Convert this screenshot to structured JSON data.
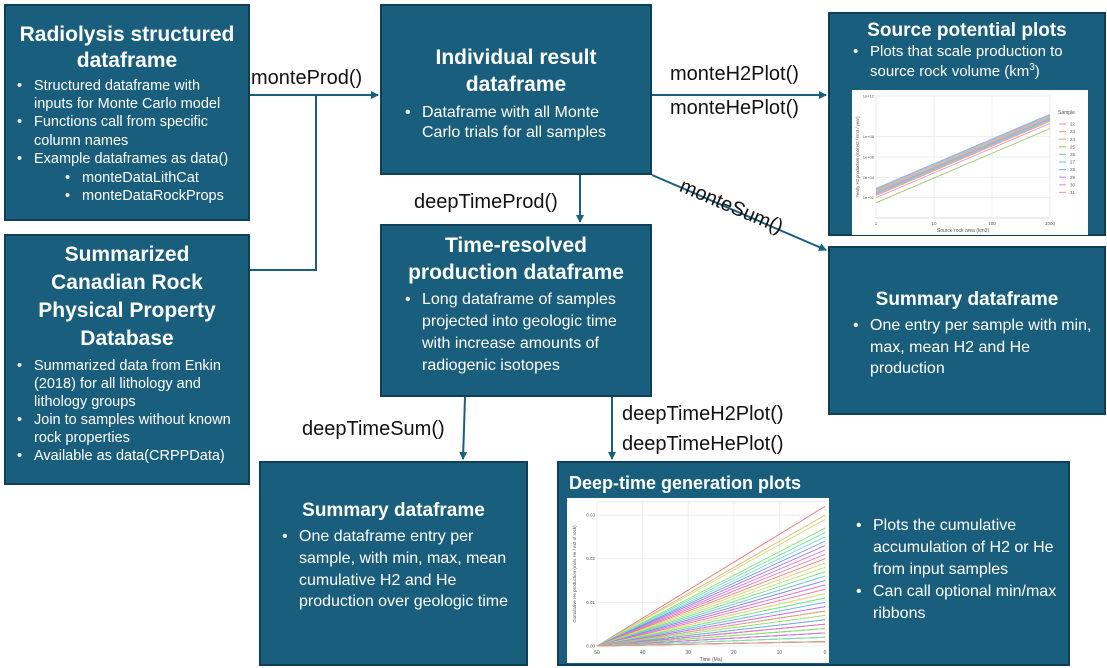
{
  "boxes": {
    "radiolysis": {
      "title": "Radiolysis structured dataframe",
      "bullets": [
        "Structured dataframe with inputs for Monte Carlo model",
        "Functions call from specific column names",
        "Example dataframes as data()"
      ],
      "sub_bullets": [
        "monteDataLithCat",
        "monteDataRockProps"
      ]
    },
    "crpp": {
      "title": "Summarized Canadian Rock Physical Property Database",
      "bullets": [
        "Summarized data from Enkin (2018) for all lithology and lithology groups",
        "Join to samples without known rock properties",
        "Available as data(CRPPData)"
      ]
    },
    "individual": {
      "title": "Individual result dataframe",
      "bullets": [
        "Dataframe with all Monte Carlo trials for all samples"
      ]
    },
    "time_resolved": {
      "title": "Time-resolved production dataframe",
      "bullets": [
        "Long dataframe of samples projected into geologic time with increase amounts of radiogenic isotopes"
      ]
    },
    "source_potential": {
      "title": "Source potential plots",
      "bullet_text": "Plots that scale production to source rock volume (km",
      "bullet_sup": "3",
      "bullet_end": ")"
    },
    "summary_right": {
      "title": "Summary dataframe",
      "bullets": [
        "One entry per sample with min, max, mean H2 and He production"
      ]
    },
    "summary_bottom": {
      "title": "Summary dataframe",
      "bullets": [
        "One dataframe entry per sample, with min, max, mean cumulative H2 and He production over geologic time"
      ]
    },
    "deep_time": {
      "title": "Deep-time generation plots",
      "bullets": [
        "Plots the cumulative accumulation of H2 or He from input samples",
        "Can call optional min/max ribbons"
      ]
    }
  },
  "functions": {
    "monteProd": "monteProd()",
    "monteH2Plot": "monteH2Plot()",
    "monteHePlot": "monteHePlot()",
    "monteSum": "monteSum()",
    "deepTimeProd": "deepTimeProd()",
    "deepTimeSum": "deepTimeSum()",
    "deepTimeH2Plot": "deepTimeH2Plot()",
    "deepTimeHePlot": "deepTimeHePlot()"
  },
  "colors": {
    "box_fill": "#1a5e7d",
    "box_border": "#0f3f58",
    "arrow": "#1a5e7d"
  },
  "chart_data": [
    {
      "type": "line",
      "title": "",
      "xlabel": "Source rock area (km3)",
      "ylabel": "Yearly H2 production (mol H2 / km3 / year)",
      "xscale": "log",
      "x_ticks": [
        "1",
        "10",
        "100",
        "1000"
      ],
      "y_ticks": [
        "1e+02",
        "1e+04",
        "1e+06",
        "1e+08",
        "1e+12"
      ],
      "legend_title": "Sample",
      "legend": [
        "22",
        "23",
        "24",
        "25",
        "26",
        "27",
        "28",
        "29",
        "30",
        "31"
      ],
      "legend_placement": "right",
      "grid": true,
      "series": [
        {
          "name": "22",
          "color": "#f4a3a3",
          "x": [
            1,
            1000
          ],
          "y_log10": [
            2.7,
            10.0
          ]
        },
        {
          "name": "23",
          "color": "#e8b08a",
          "x": [
            1,
            1000
          ],
          "y_log10": [
            2.6,
            9.9
          ]
        },
        {
          "name": "24",
          "color": "#d6c07a",
          "x": [
            1,
            1000
          ],
          "y_log10": [
            2.2,
            9.5
          ]
        },
        {
          "name": "25",
          "color": "#a9c97a",
          "x": [
            1,
            1000
          ],
          "y_log10": [
            1.5,
            8.8
          ]
        },
        {
          "name": "26",
          "color": "#7fcf9b",
          "x": [
            1,
            1000
          ],
          "y_log10": [
            2.4,
            9.7
          ]
        },
        {
          "name": "27",
          "color": "#7dcfcf",
          "x": [
            1,
            1000
          ],
          "y_log10": [
            2.8,
            10.1
          ]
        },
        {
          "name": "28",
          "color": "#86b7ea",
          "x": [
            1,
            1000
          ],
          "y_log10": [
            2.5,
            9.8
          ]
        },
        {
          "name": "29",
          "color": "#a9a3ee",
          "x": [
            1,
            1000
          ],
          "y_log10": [
            2.9,
            10.2
          ]
        },
        {
          "name": "30",
          "color": "#d79ee6",
          "x": [
            1,
            1000
          ],
          "y_log10": [
            2.3,
            9.6
          ]
        },
        {
          "name": "31",
          "color": "#ef9dc8",
          "x": [
            1,
            1000
          ],
          "y_log10": [
            2.0,
            9.3
          ]
        }
      ]
    },
    {
      "type": "line",
      "title": "",
      "xlabel": "Time (Ma)",
      "ylabel": "Cumulative He production (mols He / m3 of rock)",
      "x_ticks": [
        "50",
        "40",
        "30",
        "20",
        "10",
        "0"
      ],
      "y_ticks": [
        "0.00",
        "0.01",
        "0.02",
        "0.03"
      ],
      "xlim": [
        50,
        0
      ],
      "ylim": [
        0,
        0.033
      ],
      "grid": true,
      "series_count": 60,
      "series_endpoints_at_0_Ma": [
        0.032,
        0.03,
        0.029,
        0.027,
        0.026,
        0.025,
        0.024,
        0.023,
        0.022,
        0.021,
        0.02,
        0.019,
        0.018,
        0.017,
        0.016,
        0.016,
        0.015,
        0.014,
        0.014,
        0.013,
        0.012,
        0.012,
        0.011,
        0.011,
        0.01,
        0.01,
        0.009,
        0.009,
        0.008,
        0.008,
        0.008,
        0.007,
        0.007,
        0.006,
        0.006,
        0.006,
        0.005,
        0.005,
        0.005,
        0.004,
        0.004,
        0.004,
        0.004,
        0.003,
        0.003,
        0.003,
        0.003,
        0.003,
        0.002,
        0.002,
        0.002,
        0.002,
        0.002,
        0.002,
        0.001,
        0.001,
        0.001,
        0.001,
        0.001,
        0.001
      ],
      "series_start_value_at_50_Ma": 0.0
    }
  ]
}
